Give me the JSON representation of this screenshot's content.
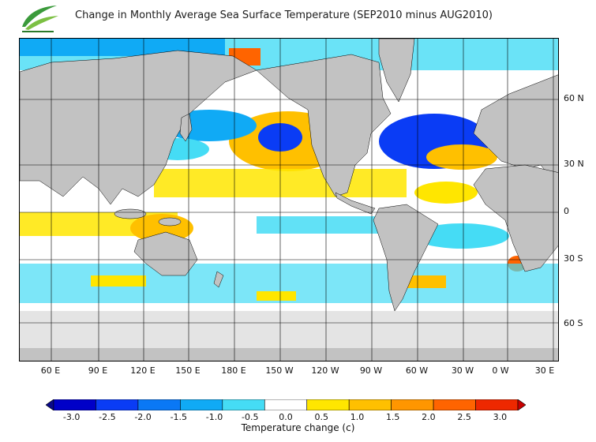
{
  "title": "Change in Monthly Average Sea Surface Temperature (SEP2010 minus AUG2010)",
  "map": {
    "latitude_labels": [
      {
        "text": "60 N",
        "lat": 60
      },
      {
        "text": "30 N",
        "lat": 30
      },
      {
        "text": "0",
        "lat": 0
      },
      {
        "text": "30 S",
        "lat": -30
      },
      {
        "text": "60 S",
        "lat": -60
      }
    ],
    "longitude_labels": [
      "60 E",
      "90 E",
      "120 E",
      "150 E",
      "180 E",
      "150 W",
      "120 W",
      "90 W",
      "60 W",
      "30 W",
      "0 W",
      "30 E"
    ]
  },
  "colorbar": {
    "label": "Temperature change  (c)",
    "ticks": [
      "-3.0",
      "-2.5",
      "-2.0",
      "-1.5",
      "-1.0",
      "-0.5",
      "0.0",
      "0.5",
      "1.0",
      "1.5",
      "2.0",
      "2.5",
      "3.0"
    ],
    "colors": [
      "#0a0a8a",
      "#0000c8",
      "#0a3cf5",
      "#0a78f5",
      "#10aaf5",
      "#45dcf5",
      "#ffffff",
      "#ffe600",
      "#ffc000",
      "#ff9600",
      "#ff6400",
      "#ee2800",
      "#c80000"
    ]
  },
  "colors": {
    "land": "#c2c2c2",
    "ice": "#e4e4e4",
    "grid": "#000000"
  }
}
